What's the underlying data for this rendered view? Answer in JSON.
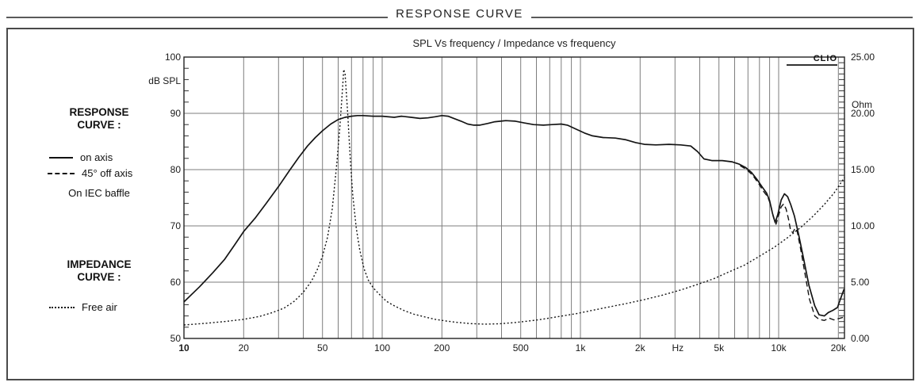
{
  "page": {
    "header_title": "RESPONSE CURVE"
  },
  "legend": {
    "response_title_line1": "RESPONSE",
    "response_title_line2": "CURVE :",
    "on_axis_label": "on axis",
    "off_axis_label": "45° off axis",
    "baffle_note": "On IEC baffle",
    "impedance_title_line1": "IMPEDANCE",
    "impedance_title_line2": "CURVE :",
    "free_air_label": "Free air"
  },
  "chart_data": {
    "type": "line",
    "title": "SPL Vs frequency / Impedance vs frequency",
    "watermark": "CLIO",
    "grid": true,
    "x_axis": {
      "scale": "log",
      "min": 10,
      "max": 21900,
      "unit_label": "Hz",
      "unit_label_freq": 3100,
      "tick_values": [
        10,
        20,
        50,
        100,
        200,
        500,
        1000,
        2000,
        5000,
        10000,
        20000
      ],
      "tick_labels": [
        "10",
        "20",
        "50",
        "100",
        "200",
        "500",
        "1k",
        "2k",
        "5k",
        "10k",
        "20k"
      ],
      "grid_values": [
        20,
        30,
        40,
        50,
        60,
        70,
        80,
        90,
        100,
        200,
        300,
        400,
        500,
        600,
        700,
        800,
        900,
        1000,
        2000,
        3000,
        4000,
        5000,
        6000,
        7000,
        8000,
        9000,
        10000,
        20000
      ]
    },
    "y_left": {
      "label": "dB SPL",
      "min": 50,
      "max": 100,
      "tick_values": [
        100,
        90,
        80,
        70,
        60,
        50
      ],
      "minor_step": 2,
      "gridline_values": [
        90,
        80,
        70,
        60
      ]
    },
    "y_right": {
      "label": "Ohm",
      "min": 0,
      "max": 25,
      "tick_values": [
        25,
        20,
        15,
        10,
        5,
        0
      ],
      "tick_labels": [
        "25.00",
        "20.00",
        "15.00",
        "10.00",
        "5.00",
        "0.00"
      ],
      "minor_step": 0.5
    },
    "series": [
      {
        "name": "on axis",
        "axis": "left",
        "style": "solid",
        "points": [
          [
            10,
            56.5
          ],
          [
            12,
            59.2
          ],
          [
            14,
            61.7
          ],
          [
            16,
            64.0
          ],
          [
            18,
            66.6
          ],
          [
            20,
            69.0
          ],
          [
            23,
            71.5
          ],
          [
            26,
            74.0
          ],
          [
            30,
            77.0
          ],
          [
            34,
            79.8
          ],
          [
            38,
            82.2
          ],
          [
            42,
            84.2
          ],
          [
            46,
            85.7
          ],
          [
            50,
            86.9
          ],
          [
            55,
            88.1
          ],
          [
            60,
            88.9
          ],
          [
            65,
            89.3
          ],
          [
            70,
            89.5
          ],
          [
            75,
            89.6
          ],
          [
            80,
            89.6
          ],
          [
            90,
            89.5
          ],
          [
            100,
            89.5
          ],
          [
            115,
            89.3
          ],
          [
            125,
            89.5
          ],
          [
            140,
            89.3
          ],
          [
            155,
            89.1
          ],
          [
            170,
            89.2
          ],
          [
            185,
            89.4
          ],
          [
            200,
            89.6
          ],
          [
            215,
            89.5
          ],
          [
            230,
            89.1
          ],
          [
            250,
            88.6
          ],
          [
            270,
            88.1
          ],
          [
            290,
            87.9
          ],
          [
            310,
            87.9
          ],
          [
            340,
            88.2
          ],
          [
            370,
            88.5
          ],
          [
            420,
            88.7
          ],
          [
            470,
            88.6
          ],
          [
            520,
            88.3
          ],
          [
            580,
            88.0
          ],
          [
            650,
            87.9
          ],
          [
            720,
            88.0
          ],
          [
            800,
            88.1
          ],
          [
            860,
            87.9
          ],
          [
            950,
            87.2
          ],
          [
            1050,
            86.5
          ],
          [
            1150,
            86.0
          ],
          [
            1300,
            85.7
          ],
          [
            1500,
            85.6
          ],
          [
            1700,
            85.3
          ],
          [
            1900,
            84.8
          ],
          [
            2100,
            84.5
          ],
          [
            2400,
            84.4
          ],
          [
            2800,
            84.5
          ],
          [
            3200,
            84.4
          ],
          [
            3600,
            84.2
          ],
          [
            3900,
            83.2
          ],
          [
            4200,
            81.9
          ],
          [
            4600,
            81.6
          ],
          [
            5200,
            81.6
          ],
          [
            5800,
            81.4
          ],
          [
            6300,
            81.0
          ],
          [
            6800,
            80.4
          ],
          [
            7300,
            79.5
          ],
          [
            7800,
            78.2
          ],
          [
            8300,
            76.8
          ],
          [
            8700,
            75.8
          ],
          [
            9000,
            74.5
          ],
          [
            9300,
            72.3
          ],
          [
            9600,
            70.6
          ],
          [
            9900,
            72.0
          ],
          [
            10300,
            74.6
          ],
          [
            10700,
            75.7
          ],
          [
            11100,
            75.2
          ],
          [
            11500,
            73.8
          ],
          [
            12000,
            71.8
          ],
          [
            12600,
            68.5
          ],
          [
            13300,
            64.5
          ],
          [
            14200,
            59.5
          ],
          [
            15200,
            55.8
          ],
          [
            16000,
            54.2
          ],
          [
            17000,
            54.0
          ],
          [
            17800,
            54.6
          ],
          [
            18800,
            55.0
          ],
          [
            19800,
            55.5
          ],
          [
            20500,
            57.0
          ],
          [
            21400,
            58.8
          ]
        ]
      },
      {
        "name": "45° off axis",
        "axis": "left",
        "style": "dashed",
        "points": [
          [
            6400,
            80.7
          ],
          [
            6900,
            80.0
          ],
          [
            7400,
            79.0
          ],
          [
            7900,
            77.6
          ],
          [
            8400,
            76.1
          ],
          [
            8800,
            75.2
          ],
          [
            9100,
            73.8
          ],
          [
            9400,
            71.6
          ],
          [
            9700,
            70.3
          ],
          [
            10000,
            71.9
          ],
          [
            10300,
            73.4
          ],
          [
            10600,
            73.9
          ],
          [
            10900,
            73.0
          ],
          [
            11200,
            71.3
          ],
          [
            11500,
            69.1
          ],
          [
            11800,
            68.8
          ],
          [
            12100,
            69.6
          ],
          [
            12400,
            69.0
          ],
          [
            12900,
            66.0
          ],
          [
            13500,
            62.0
          ],
          [
            14300,
            57.0
          ],
          [
            15200,
            54.0
          ],
          [
            16000,
            53.4
          ],
          [
            17000,
            53.2
          ],
          [
            18000,
            53.6
          ],
          [
            19000,
            53.3
          ],
          [
            20000,
            53.5
          ],
          [
            21400,
            53.8
          ]
        ]
      },
      {
        "name": "Free air",
        "axis": "right",
        "style": "dotted",
        "points": [
          [
            10,
            1.2
          ],
          [
            13,
            1.35
          ],
          [
            16,
            1.5
          ],
          [
            20,
            1.7
          ],
          [
            24,
            1.95
          ],
          [
            28,
            2.3
          ],
          [
            32,
            2.7
          ],
          [
            36,
            3.3
          ],
          [
            40,
            4.1
          ],
          [
            44,
            5.1
          ],
          [
            47,
            6.1
          ],
          [
            50,
            7.3
          ],
          [
            53,
            9.0
          ],
          [
            56,
            11.5
          ],
          [
            59,
            15.5
          ],
          [
            61,
            18.5
          ],
          [
            63,
            22.0
          ],
          [
            64,
            23.9
          ],
          [
            65,
            23.5
          ],
          [
            67,
            20.0
          ],
          [
            69,
            16.0
          ],
          [
            71,
            12.8
          ],
          [
            74,
            9.8
          ],
          [
            77,
            7.9
          ],
          [
            81,
            6.2
          ],
          [
            85,
            5.2
          ],
          [
            90,
            4.5
          ],
          [
            97,
            3.9
          ],
          [
            105,
            3.3
          ],
          [
            115,
            2.9
          ],
          [
            130,
            2.45
          ],
          [
            145,
            2.15
          ],
          [
            165,
            1.9
          ],
          [
            185,
            1.7
          ],
          [
            210,
            1.55
          ],
          [
            240,
            1.42
          ],
          [
            280,
            1.32
          ],
          [
            330,
            1.27
          ],
          [
            390,
            1.3
          ],
          [
            460,
            1.4
          ],
          [
            550,
            1.55
          ],
          [
            650,
            1.72
          ],
          [
            780,
            1.95
          ],
          [
            950,
            2.2
          ],
          [
            1150,
            2.5
          ],
          [
            1400,
            2.8
          ],
          [
            1700,
            3.1
          ],
          [
            2100,
            3.45
          ],
          [
            2600,
            3.85
          ],
          [
            3200,
            4.3
          ],
          [
            3900,
            4.8
          ],
          [
            4700,
            5.3
          ],
          [
            5600,
            5.9
          ],
          [
            6700,
            6.5
          ],
          [
            8000,
            7.3
          ],
          [
            9500,
            8.1
          ],
          [
            11000,
            8.9
          ],
          [
            13000,
            9.9
          ],
          [
            15000,
            10.9
          ],
          [
            17000,
            11.9
          ],
          [
            19000,
            12.9
          ],
          [
            21500,
            14.3
          ]
        ]
      }
    ]
  },
  "colors": {
    "curve": "#141414",
    "grid": "#7d7d7d",
    "border": "#222222",
    "text": "#1a1a1a"
  }
}
